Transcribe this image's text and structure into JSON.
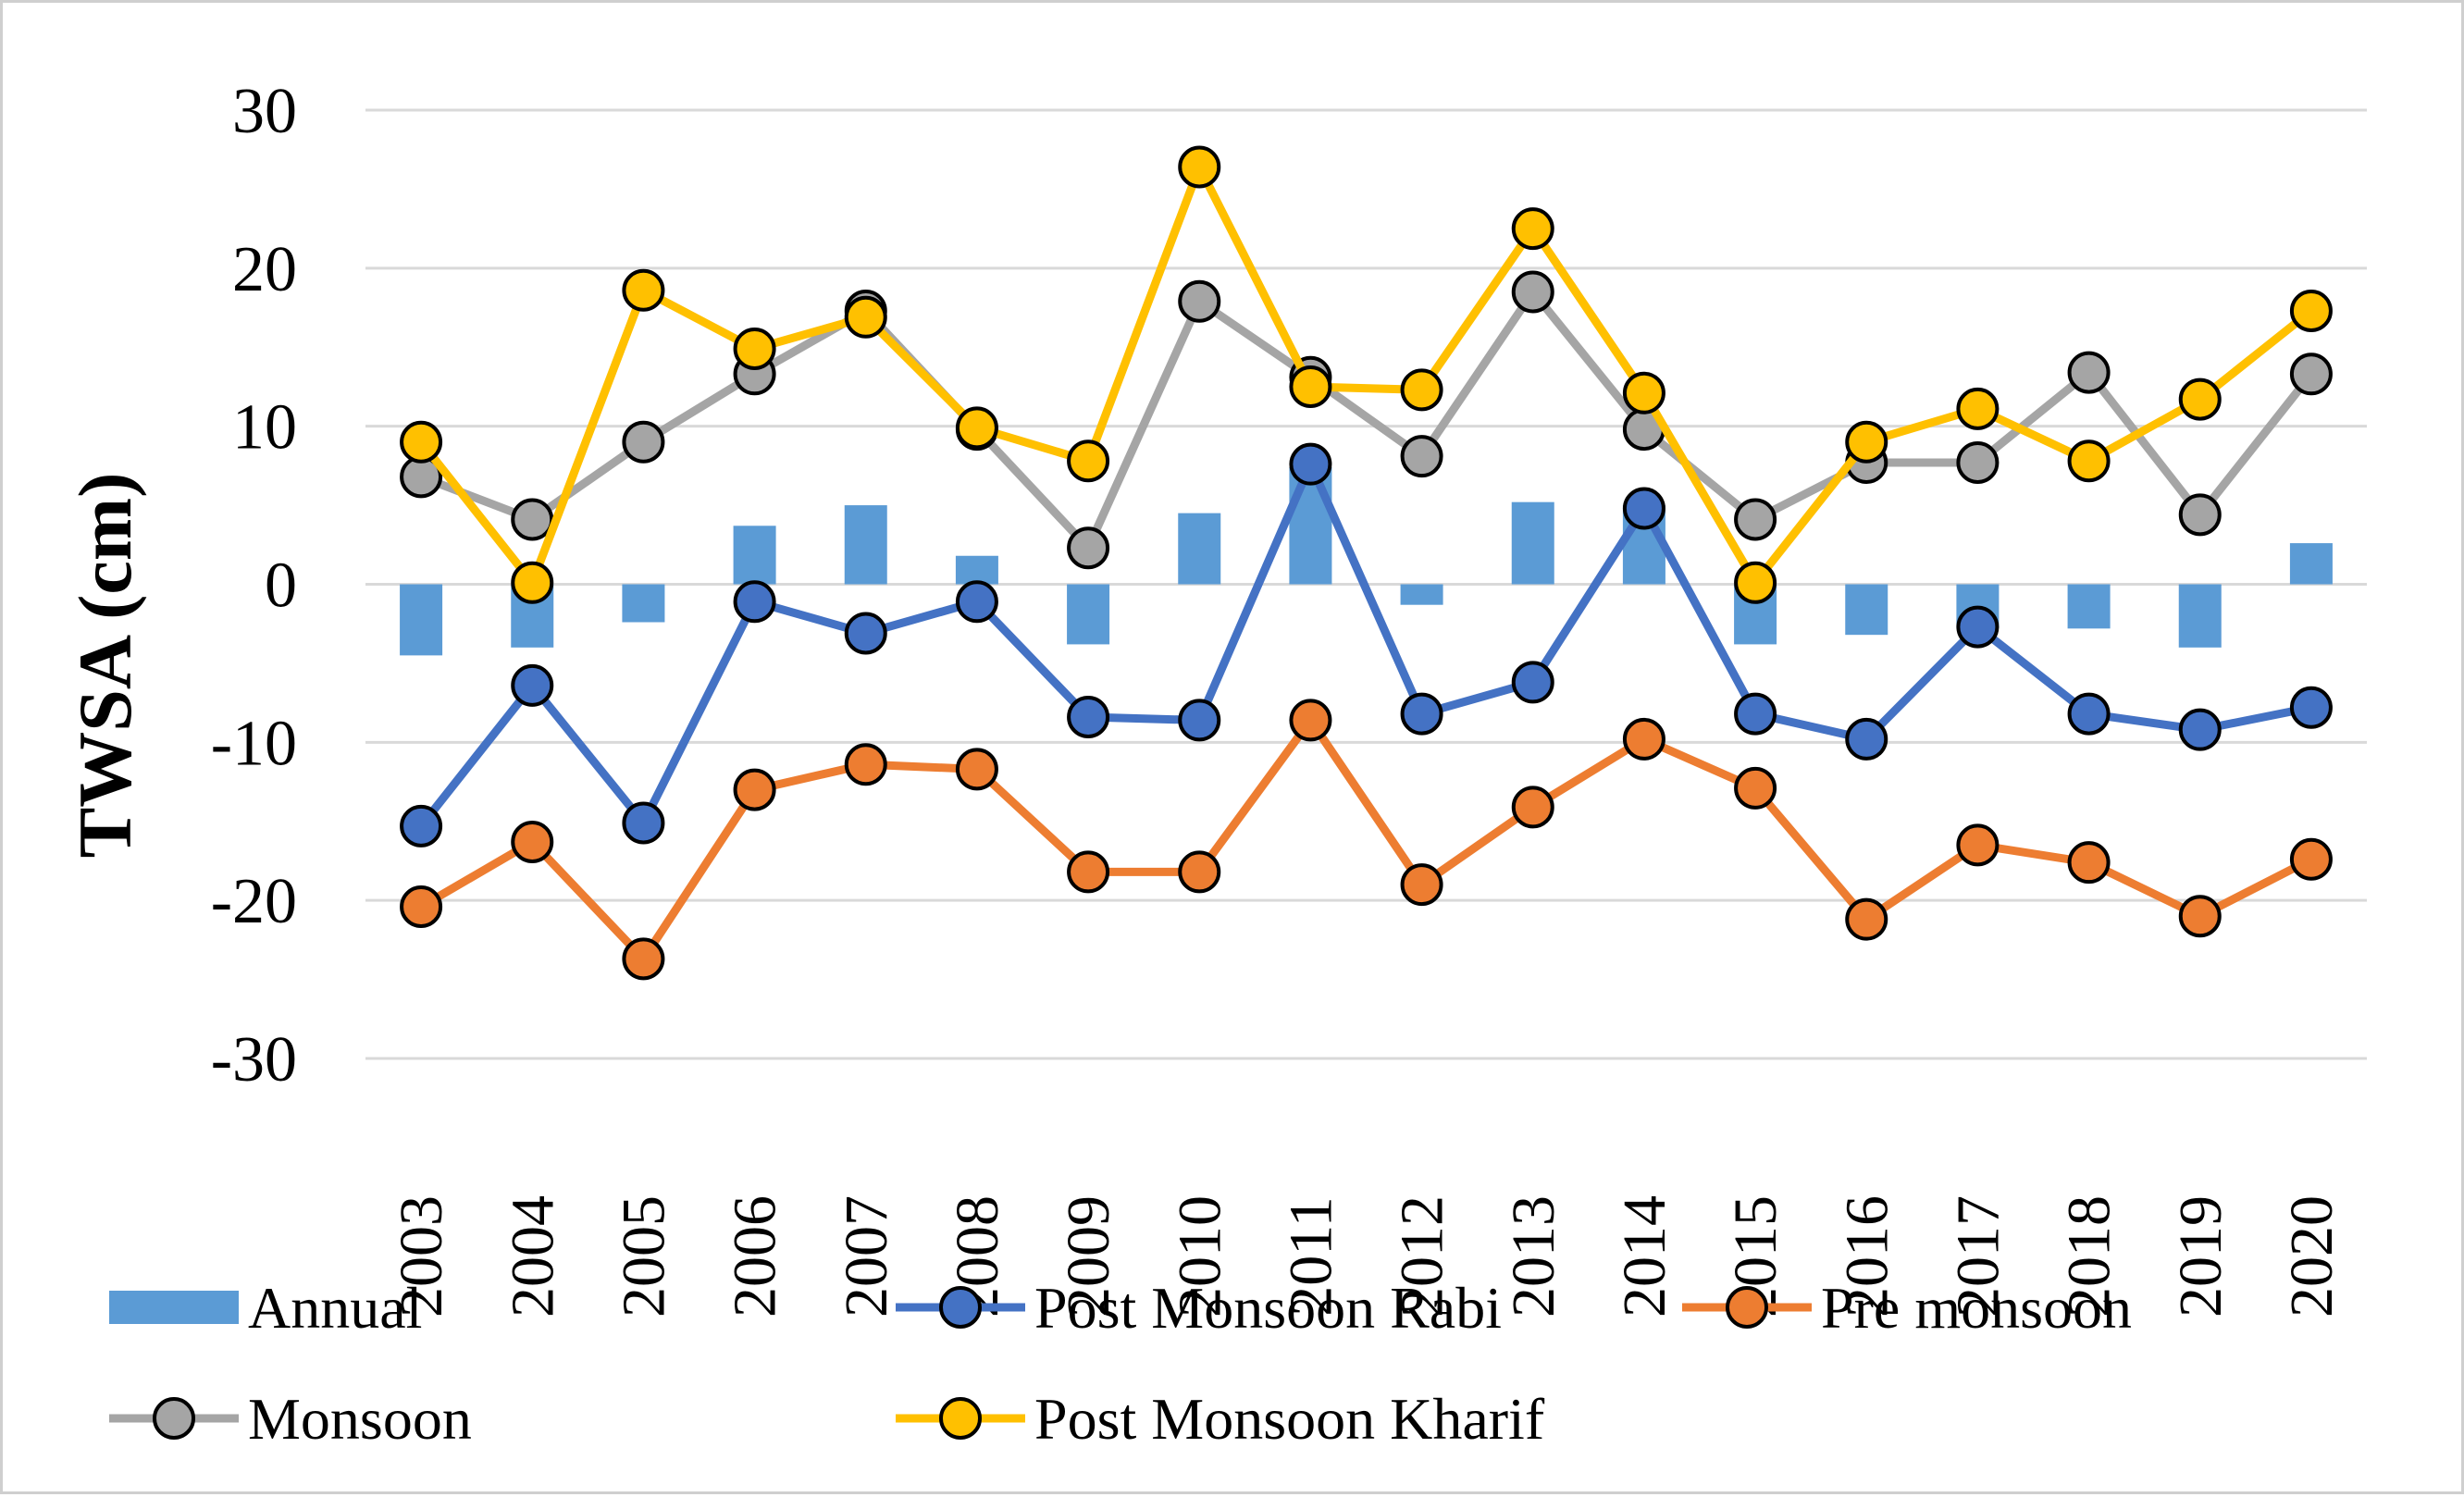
{
  "chart_data": {
    "type": "bar+line",
    "title": "",
    "xlabel": "",
    "ylabel": "TWSA (cm)",
    "ylim": [
      -30,
      30
    ],
    "yticks": [
      30,
      20,
      10,
      0,
      -10,
      -20,
      -30
    ],
    "ytick_labels": [
      "30",
      "20",
      "10",
      "0",
      "-10",
      "-20",
      "-30"
    ],
    "grid": true,
    "legend_position": "bottom",
    "categories": [
      "2003",
      "2004",
      "2005",
      "2006",
      "2007",
      "2008",
      "2009",
      "2010",
      "2011",
      "2012",
      "2013",
      "2014",
      "2015",
      "2016",
      "2017",
      "2018",
      "2019",
      "2020"
    ],
    "series": [
      {
        "name": "Annual",
        "kind": "bar",
        "color": "#5b9bd5",
        "values": [
          -4.5,
          -4.0,
          -2.4,
          3.7,
          5.0,
          1.8,
          -3.8,
          4.5,
          7.4,
          -1.3,
          5.2,
          5.0,
          -3.8,
          -3.2,
          -2.8,
          -2.8,
          -4.0,
          2.6
        ]
      },
      {
        "name": "Post Monsoon Rabi",
        "kind": "line",
        "color": "#4472c4",
        "values": [
          -15.3,
          -6.4,
          -15.1,
          -1.1,
          -3.1,
          -1.1,
          -8.4,
          -8.6,
          7.6,
          -8.2,
          -6.2,
          4.8,
          -8.2,
          -9.8,
          -2.7,
          -8.2,
          -9.2,
          -7.8
        ]
      },
      {
        "name": "Pre monsoon",
        "kind": "line",
        "color": "#ed7d31",
        "values": [
          -20.4,
          -16.3,
          -23.7,
          -13.0,
          -11.4,
          -11.7,
          -18.2,
          -18.2,
          -8.6,
          -19.0,
          -14.1,
          -9.8,
          -12.9,
          -21.2,
          -16.5,
          -17.6,
          -21.0,
          -17.4
        ]
      },
      {
        "name": "Monsoon",
        "kind": "line",
        "color": "#a5a5a5",
        "values": [
          6.8,
          4.1,
          9.0,
          13.3,
          17.3,
          9.8,
          2.3,
          17.9,
          13.1,
          8.1,
          18.5,
          9.8,
          4.1,
          7.7,
          7.7,
          13.4,
          4.4,
          13.3
        ]
      },
      {
        "name": "Post Monsoon Kharif",
        "kind": "line",
        "color": "#ffc000",
        "values": [
          9.0,
          0.1,
          18.6,
          14.9,
          16.9,
          9.9,
          7.8,
          26.4,
          12.5,
          12.3,
          22.5,
          12.1,
          0.1,
          9.0,
          11.1,
          7.8,
          11.7,
          17.3
        ]
      }
    ]
  }
}
